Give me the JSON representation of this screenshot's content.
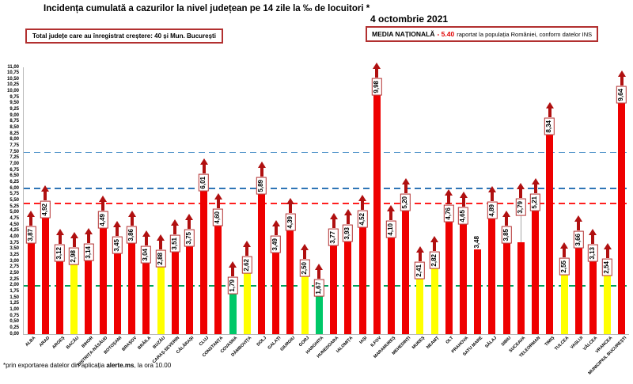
{
  "header": {
    "title": "Incidența cumulată a cazurilor la nivel județean pe 14 zile la ‰ de locuitori *",
    "date": "4 octombrie 2021",
    "growth_box": "Total județe care au înregistrat creștere: 40 și Mun. București",
    "national_average": {
      "label": "MEDIA NAȚIONALĂ",
      "value": "- 5.40",
      "suffix": "raportat la populația României, conform datelor INS"
    }
  },
  "footnote": {
    "prefix": "*prin exportarea datelor din aplicația ",
    "bold": "alerte.ms",
    "suffix": ", la ora 10.00"
  },
  "chart_data": {
    "type": "bar",
    "title": "Incidența cumulată a cazurilor la nivel județean pe 14 zile la ‰ de locuitori *",
    "subtitle": "4 octombrie 2021",
    "xlabel": "",
    "ylabel": "",
    "ylim": [
      0,
      11
    ],
    "ytick_step": 0.25,
    "grid": false,
    "legend": false,
    "decimal_separator": ",",
    "categories": [
      "ALBA",
      "ARAD",
      "ARGEȘ",
      "BACĂU",
      "BIHOR",
      "BISTRIȚA-NĂSĂUD",
      "BOTOȘANI",
      "BRAȘOV",
      "BRĂILA",
      "BUZĂU",
      "CARAȘ-SEVERIN",
      "CĂLĂRAȘI",
      "CLUJ",
      "CONSTANȚA",
      "COVASNA",
      "DÂMBOVIȚA",
      "DOLJ",
      "GALAȚI",
      "GIURGIU",
      "GORJ",
      "HARGHITA",
      "HUNEDOARA",
      "IALOMIȚA",
      "IAȘI",
      "ILFOV",
      "MARAMUREȘ",
      "MEHEDINȚI",
      "MUREȘ",
      "NEAMȚ",
      "OLT",
      "PRAHOVA",
      "SATU MARE",
      "SĂLAJ",
      "SIBIU",
      "SUCEAVA",
      "TELEORMAN",
      "TIMIȘ",
      "TULCEA",
      "VASLUI",
      "VÂLCEA",
      "VRANCEA",
      "MUNICIPIUL BUCUREȘTI"
    ],
    "values": [
      3.87,
      4.92,
      3.12,
      2.98,
      3.14,
      4.49,
      3.45,
      3.86,
      3.04,
      2.88,
      3.51,
      3.75,
      6.01,
      4.6,
      1.79,
      2.62,
      5.89,
      3.49,
      4.39,
      2.5,
      1.67,
      3.77,
      3.93,
      4.52,
      9.98,
      4.1,
      5.2,
      2.41,
      2.82,
      4.76,
      4.65,
      3.48,
      4.89,
      3.85,
      3.79,
      5.21,
      8.34,
      2.55,
      3.66,
      3.13,
      2.54,
      9.64
    ],
    "bar_states": [
      "red",
      "red",
      "red",
      "yellow",
      "red",
      "red",
      "red",
      "red",
      "red",
      "yellow",
      "red",
      "red",
      "red",
      "red",
      "green",
      "yellow",
      "red",
      "red",
      "red",
      "yellow",
      "green",
      "red",
      "red",
      "red",
      "red",
      "red",
      "red",
      "yellow",
      "yellow",
      "red",
      "red",
      "red",
      "red",
      "red",
      "red",
      "red",
      "red",
      "yellow",
      "red",
      "red",
      "yellow",
      "red"
    ],
    "no_increase": [
      "SATU MARE"
    ],
    "raised_labels": {
      "SUCEAVA": 37
    },
    "palette": {
      "red": "#EE0000",
      "yellow": "#FFFF00",
      "green": "#00C868",
      "arrow": "#B01010",
      "box_border": "#B23030"
    },
    "thresholds": [
      {
        "value": 7.5,
        "color": "#4A90C8",
        "thickness": 1
      },
      {
        "value": 6.0,
        "color": "#2E75B6",
        "thickness": 2
      },
      {
        "value": 5.4,
        "color": "#FF1F1F",
        "thickness": 2
      },
      {
        "value": 2.0,
        "color": "#00A15C",
        "thickness": 2
      }
    ]
  }
}
